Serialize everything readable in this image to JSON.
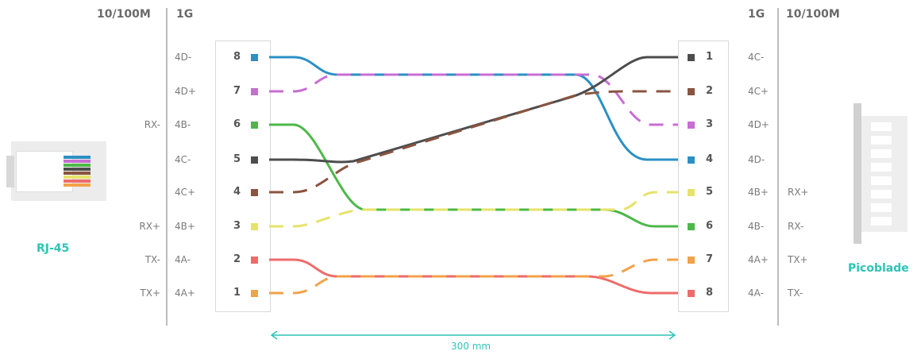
{
  "left_header": {
    "speed_100": "10/100M",
    "speed_1g": "1G"
  },
  "right_header": {
    "speed_1g": "1G",
    "speed_100": "10/100M"
  },
  "left_pins": [
    {
      "num": "8",
      "g1": "4D-",
      "m100": "",
      "color": "#2b90c4"
    },
    {
      "num": "7",
      "g1": "4D+",
      "m100": "",
      "color": "#c86dd3"
    },
    {
      "num": "6",
      "g1": "4B-",
      "m100": "RX-",
      "color": "#4db848"
    },
    {
      "num": "5",
      "g1": "4C-",
      "m100": "",
      "color": "#4d4d4d"
    },
    {
      "num": "4",
      "g1": "4C+",
      "m100": "",
      "color": "#8a5440"
    },
    {
      "num": "3",
      "g1": "4B+",
      "m100": "RX+",
      "color": "#e6e36a"
    },
    {
      "num": "2",
      "g1": "4A-",
      "m100": "TX-",
      "color": "#ee6b6b"
    },
    {
      "num": "1",
      "g1": "4A+",
      "m100": "TX+",
      "color": "#f2a24a"
    }
  ],
  "right_pins": [
    {
      "num": "1",
      "g1": "4C-",
      "m100": "",
      "color": "#4d4d4d"
    },
    {
      "num": "2",
      "g1": "4C+",
      "m100": "",
      "color": "#8a5440"
    },
    {
      "num": "3",
      "g1": "4D+",
      "m100": "",
      "color": "#c86dd3"
    },
    {
      "num": "4",
      "g1": "4D-",
      "m100": "",
      "color": "#2b90c4"
    },
    {
      "num": "5",
      "g1": "4B+",
      "m100": "RX+",
      "color": "#e6e36a"
    },
    {
      "num": "6",
      "g1": "4B-",
      "m100": "RX-",
      "color": "#4db848"
    },
    {
      "num": "7",
      "g1": "4A+",
      "m100": "TX+",
      "color": "#f2a24a"
    },
    {
      "num": "8",
      "g1": "4A-",
      "m100": "TX-",
      "color": "#ee6b6b"
    }
  ],
  "rj45_label": "RJ-45",
  "picoblade_label": "Picoblade",
  "length_label": "300 mm",
  "colors": {
    "accent": "#2ec4b6",
    "divider": "#bdbdbd"
  }
}
